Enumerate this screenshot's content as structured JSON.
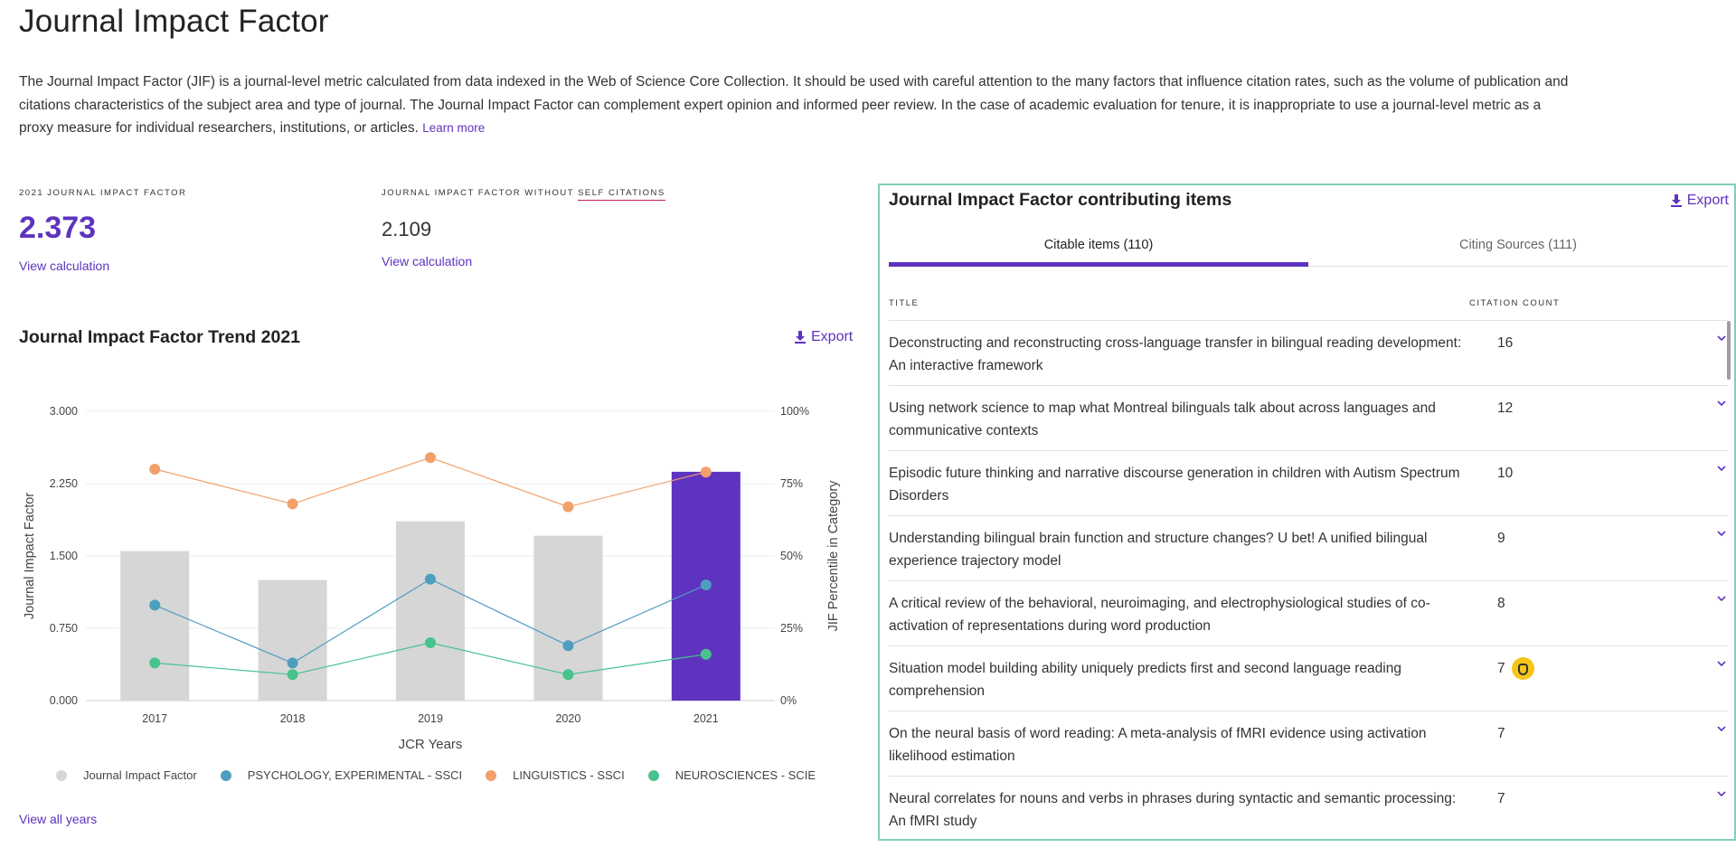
{
  "page": {
    "title": "Journal Impact Factor",
    "intro": "The Journal Impact Factor (JIF) is a journal-level metric calculated from data indexed in the Web of Science Core Collection. It should be used with careful attention to the many factors that influence citation rates, such as the volume of publication and citations characteristics of the subject area and type of journal. The Journal Impact Factor can complement expert opinion and informed peer review. In the case of academic evaluation for tenure, it is inappropriate to use a journal-level metric as a proxy measure for individual researchers, institutions, or articles.",
    "learn_more": "Learn more"
  },
  "metrics": {
    "jif": {
      "label": "2021 Journal Impact Factor",
      "value": "2.373",
      "link": "View calculation"
    },
    "jif_no_self": {
      "label_prefix": "Journal Impact Factor without",
      "label_emph": "Self Citations",
      "value": "2.109",
      "link": "View calculation"
    }
  },
  "trend": {
    "title": "Journal Impact Factor Trend 2021",
    "export_label": "Export",
    "view_all": "View all years"
  },
  "chart_data": {
    "type": "bar",
    "categories": [
      "2017",
      "2018",
      "2019",
      "2020",
      "2021"
    ],
    "xlabel": "JCR Years",
    "ylabel": "Journal Impact Factor",
    "ylabel_right": "JIF Percentile in Category",
    "ylim": [
      0,
      3
    ],
    "ylim_right": [
      0,
      100
    ],
    "yticks": [
      "0.000",
      "0.750",
      "1.500",
      "2.250",
      "3.000"
    ],
    "yticks_right": [
      "0%",
      "25%",
      "50%",
      "75%",
      "100%"
    ],
    "bars": {
      "name": "Journal Impact Factor",
      "values": [
        1.55,
        1.25,
        1.86,
        1.71,
        2.373
      ],
      "color": "#d6d6d6",
      "highlight_color": "#5e33bf",
      "highlight_index": 4
    },
    "series": [
      {
        "name": "PSYCHOLOGY, EXPERIMENTAL - SSCI",
        "axis": "right",
        "values": [
          33,
          13,
          42,
          19,
          40
        ],
        "color": "#4e9fbf"
      },
      {
        "name": "LINGUISTICS - SSCI",
        "axis": "right",
        "values": [
          80,
          68,
          84,
          67,
          79
        ],
        "color": "#f2a06b"
      },
      {
        "name": "NEUROSCIENCES - SCIE",
        "axis": "right",
        "values": [
          13,
          9,
          20,
          9,
          16
        ],
        "color": "#48c28e"
      }
    ],
    "grid": true,
    "legend": "bottom"
  },
  "panel": {
    "title": "Journal Impact Factor contributing items",
    "export_label": "Export",
    "tabs": [
      {
        "label": "Citable items (110)",
        "active": true
      },
      {
        "label": "Citing Sources (111)",
        "active": false
      }
    ],
    "columns": {
      "title": "Title",
      "count": "Citation count"
    },
    "rows": [
      {
        "title": "Deconstructing and reconstructing cross-language transfer in bilingual reading development: An interactive framework",
        "count": "16",
        "open_access": false
      },
      {
        "title": "Using network science to map what Montreal bilinguals talk about across languages and communicative contexts",
        "count": "12",
        "open_access": false
      },
      {
        "title": "Episodic future thinking and narrative discourse generation in children with Autism Spectrum Disorders",
        "count": "10",
        "open_access": false
      },
      {
        "title": "Understanding bilingual brain function and structure changes? U bet! A unified bilingual experience trajectory model",
        "count": "9",
        "open_access": false
      },
      {
        "title": "A critical review of the behavioral, neuroimaging, and electrophysiological studies of co-activation of representations during word production",
        "count": "8",
        "open_access": false
      },
      {
        "title": "Situation model building ability uniquely predicts first and second language reading comprehension",
        "count": "7",
        "open_access": true
      },
      {
        "title": "On the neural basis of word reading: A meta-analysis of fMRI evidence using activation likelihood estimation",
        "count": "7",
        "open_access": false
      },
      {
        "title": "Neural correlates for nouns and verbs in phrases during syntactic and semantic processing: An fMRI study",
        "count": "7",
        "open_access": false
      }
    ]
  }
}
